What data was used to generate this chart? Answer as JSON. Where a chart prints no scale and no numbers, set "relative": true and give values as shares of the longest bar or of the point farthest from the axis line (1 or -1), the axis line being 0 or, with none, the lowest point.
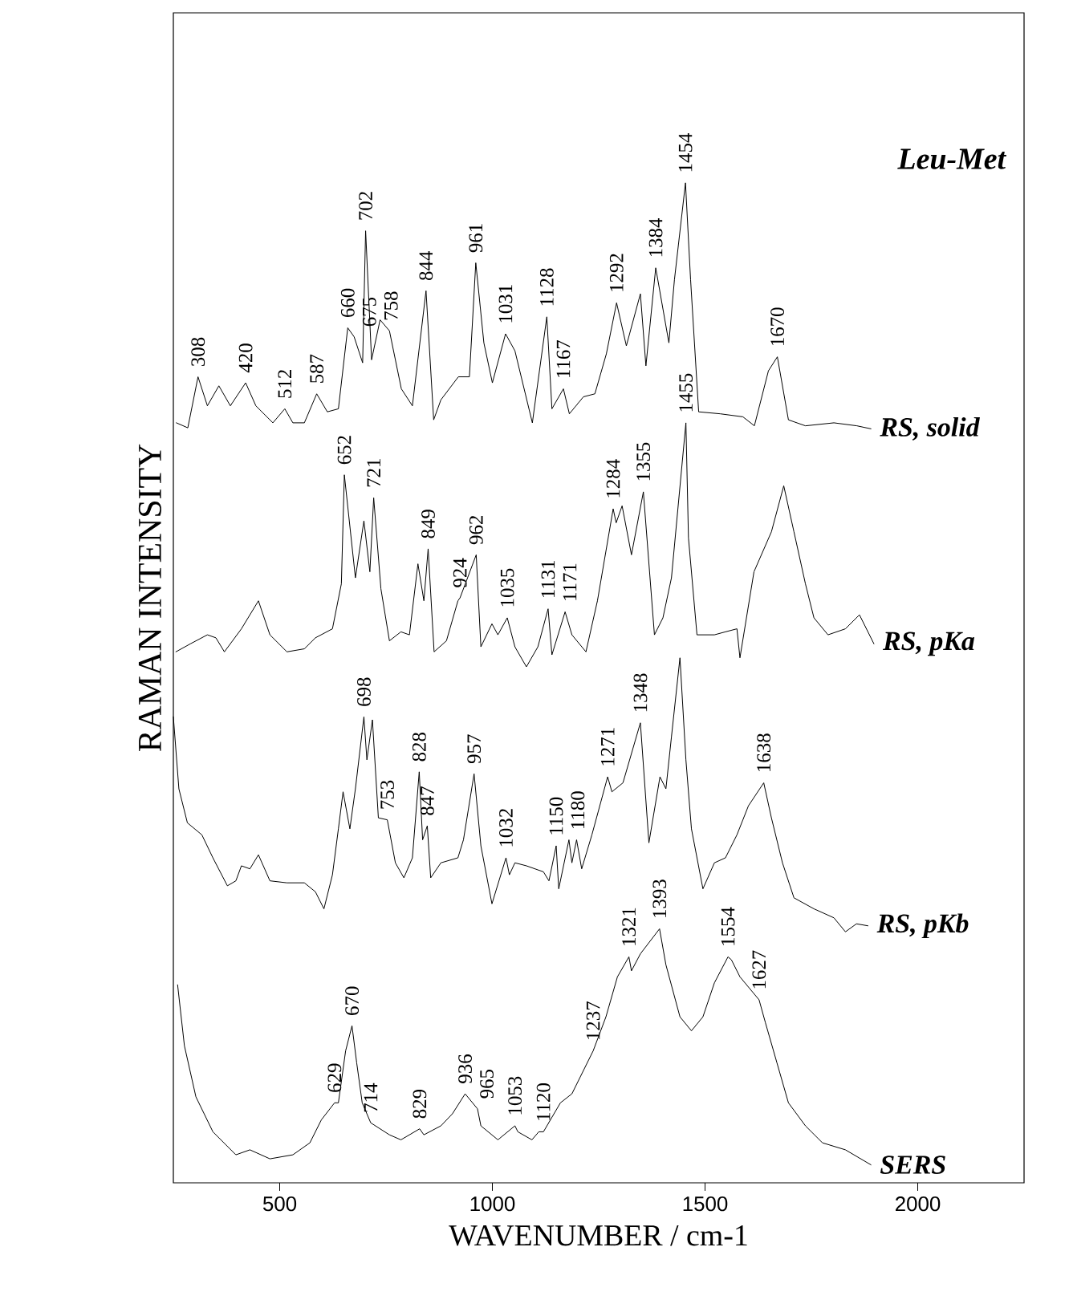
{
  "chart_data": {
    "type": "line",
    "title": "Leu-Met",
    "xlabel": "WAVENUMBER / cm-1",
    "ylabel": "RAMAN INTENSITY",
    "relative": true,
    "xlim": [
      250,
      2250
    ],
    "xticks": [
      500,
      1000,
      1500,
      2000
    ],
    "series": [
      {
        "name": "RS, solid",
        "color": "#000000",
        "x": [
          257,
          284,
          308,
          330,
          357,
          384,
          420,
          444,
          484,
          512,
          531,
          558,
          587,
          612,
          638,
          660,
          675,
          695,
          702,
          716,
          736,
          758,
          786,
          812,
          844,
          862,
          879,
          920,
          946,
          961,
          980,
          1000,
          1031,
          1053,
          1094,
          1128,
          1140,
          1167,
          1181,
          1214,
          1241,
          1268,
          1292,
          1315,
          1348,
          1361,
          1384,
          1415,
          1428,
          1454,
          1466,
          1485,
          1536,
          1589,
          1616,
          1649,
          1670,
          1696,
          1736,
          1803,
          1857,
          1890
        ],
        "values": [
          0.76,
          0.755,
          0.806,
          0.777,
          0.797,
          0.777,
          0.8,
          0.777,
          0.76,
          0.774,
          0.76,
          0.76,
          0.789,
          0.771,
          0.774,
          0.855,
          0.846,
          0.82,
          0.952,
          0.823,
          0.863,
          0.852,
          0.794,
          0.777,
          0.892,
          0.763,
          0.783,
          0.806,
          0.806,
          0.92,
          0.84,
          0.8,
          0.849,
          0.832,
          0.76,
          0.866,
          0.774,
          0.794,
          0.769,
          0.786,
          0.789,
          0.829,
          0.88,
          0.837,
          0.889,
          0.817,
          0.915,
          0.84,
          0.903,
          1.0,
          0.903,
          0.771,
          0.769,
          0.766,
          0.757,
          0.812,
          0.826,
          0.763,
          0.757,
          0.76,
          0.757,
          0.754
        ]
      },
      {
        "name": "RS, pKa",
        "color": "#000000",
        "x": [
          256,
          290,
          330,
          350,
          370,
          410,
          450,
          477,
          517,
          558,
          584,
          624,
          645,
          652,
          678,
          698,
          712,
          721,
          738,
          758,
          785,
          805,
          825,
          839,
          849,
          863,
          892,
          919,
          924,
          962,
          973,
          999,
          1013,
          1035,
          1053,
          1080,
          1107,
          1131,
          1140,
          1171,
          1187,
          1220,
          1247,
          1284,
          1291,
          1305,
          1327,
          1355,
          1381,
          1401,
          1421,
          1455,
          1461,
          1481,
          1522,
          1548,
          1575,
          1582,
          1615,
          1656,
          1685,
          1709,
          1736,
          1756,
          1789,
          1830,
          1863,
          1897
        ],
        "values": [
          0.531,
          0.539,
          0.548,
          0.545,
          0.531,
          0.554,
          0.582,
          0.548,
          0.531,
          0.534,
          0.545,
          0.554,
          0.599,
          0.708,
          0.605,
          0.662,
          0.611,
          0.685,
          0.594,
          0.542,
          0.551,
          0.548,
          0.619,
          0.582,
          0.634,
          0.531,
          0.542,
          0.582,
          0.585,
          0.628,
          0.536,
          0.559,
          0.548,
          0.565,
          0.536,
          0.516,
          0.536,
          0.574,
          0.528,
          0.571,
          0.548,
          0.531,
          0.582,
          0.674,
          0.66,
          0.677,
          0.628,
          0.691,
          0.548,
          0.565,
          0.605,
          0.76,
          0.645,
          0.548,
          0.548,
          0.551,
          0.554,
          0.525,
          0.611,
          0.651,
          0.697,
          0.651,
          0.599,
          0.565,
          0.548,
          0.554,
          0.568,
          0.539
        ]
      },
      {
        "name": "RS, pKb",
        "color": "#000000",
        "x": [
          250,
          263,
          283,
          317,
          343,
          377,
          397,
          410,
          430,
          450,
          477,
          517,
          558,
          584,
          604,
          624,
          638,
          649,
          665,
          678,
          698,
          705,
          718,
          732,
          753,
          772,
          792,
          812,
          828,
          836,
          847,
          855,
          879,
          919,
          932,
          957,
          973,
          999,
          1032,
          1040,
          1053,
          1080,
          1120,
          1133,
          1150,
          1156,
          1180,
          1187,
          1198,
          1210,
          1234,
          1271,
          1281,
          1307,
          1348,
          1368,
          1394,
          1408,
          1421,
          1441,
          1455,
          1468,
          1495,
          1522,
          1548,
          1575,
          1602,
          1638,
          1656,
          1682,
          1709,
          1756,
          1803,
          1830,
          1856,
          1883
        ],
        "values": [
          0.466,
          0.394,
          0.36,
          0.348,
          0.325,
          0.297,
          0.302,
          0.317,
          0.314,
          0.328,
          0.302,
          0.3,
          0.3,
          0.291,
          0.274,
          0.308,
          0.354,
          0.391,
          0.354,
          0.394,
          0.466,
          0.423,
          0.463,
          0.365,
          0.363,
          0.32,
          0.305,
          0.325,
          0.411,
          0.343,
          0.357,
          0.305,
          0.32,
          0.325,
          0.343,
          0.409,
          0.337,
          0.279,
          0.325,
          0.308,
          0.32,
          0.317,
          0.311,
          0.302,
          0.337,
          0.294,
          0.343,
          0.32,
          0.343,
          0.314,
          0.348,
          0.406,
          0.391,
          0.4,
          0.46,
          0.34,
          0.406,
          0.394,
          0.446,
          0.525,
          0.423,
          0.354,
          0.294,
          0.32,
          0.325,
          0.348,
          0.377,
          0.4,
          0.365,
          0.32,
          0.285,
          0.274,
          0.265,
          0.251,
          0.259,
          0.257
        ]
      },
      {
        "name": "SERS",
        "color": "#000000",
        "x": [
          260,
          276,
          303,
          343,
          397,
          430,
          477,
          531,
          571,
          598,
          629,
          638,
          655,
          670,
          681,
          694,
          714,
          758,
          785,
          829,
          839,
          879,
          906,
          936,
          965,
          973,
          1013,
          1053,
          1060,
          1093,
          1109,
          1120,
          1160,
          1187,
          1237,
          1267,
          1294,
          1321,
          1327,
          1348,
          1393,
          1408,
          1441,
          1468,
          1495,
          1522,
          1554,
          1562,
          1582,
          1627,
          1642,
          1669,
          1696,
          1736,
          1776,
          1830,
          1890
        ],
        "values": [
          0.198,
          0.137,
          0.086,
          0.051,
          0.028,
          0.033,
          0.024,
          0.028,
          0.04,
          0.063,
          0.08,
          0.08,
          0.132,
          0.157,
          0.12,
          0.08,
          0.06,
          0.048,
          0.043,
          0.054,
          0.048,
          0.057,
          0.069,
          0.089,
          0.074,
          0.057,
          0.043,
          0.057,
          0.051,
          0.043,
          0.051,
          0.051,
          0.08,
          0.089,
          0.132,
          0.166,
          0.206,
          0.226,
          0.212,
          0.229,
          0.254,
          0.218,
          0.166,
          0.152,
          0.166,
          0.2,
          0.226,
          0.223,
          0.206,
          0.183,
          0.16,
          0.12,
          0.08,
          0.057,
          0.04,
          0.033,
          0.018
        ]
      }
    ],
    "annotations": [
      {
        "text": "308",
        "x": 308,
        "y": 0.806
      },
      {
        "text": "420",
        "x": 420,
        "y": 0.8
      },
      {
        "text": "512",
        "x": 512,
        "y": 0.774
      },
      {
        "text": "587",
        "x": 587,
        "y": 0.789
      },
      {
        "text": "660",
        "x": 660,
        "y": 0.855
      },
      {
        "text": "675",
        "x": 675,
        "y": 0.846
      },
      {
        "text": "702",
        "x": 702,
        "y": 0.952
      },
      {
        "text": "758",
        "x": 758,
        "y": 0.852
      },
      {
        "text": "844",
        "x": 844,
        "y": 0.892
      },
      {
        "text": "961",
        "x": 961,
        "y": 0.92
      },
      {
        "text": "1031",
        "x": 1031,
        "y": 0.849
      },
      {
        "text": "1128",
        "x": 1128,
        "y": 0.866
      },
      {
        "text": "1167",
        "x": 1167,
        "y": 0.794
      },
      {
        "text": "1292",
        "x": 1292,
        "y": 0.88
      },
      {
        "text": "1384",
        "x": 1384,
        "y": 0.915
      },
      {
        "text": "1454",
        "x": 1454,
        "y": 1.0
      },
      {
        "text": "1670",
        "x": 1670,
        "y": 0.826
      },
      {
        "text": "1455",
        "x": 1455,
        "y": 0.76
      },
      {
        "text": "652",
        "x": 652,
        "y": 0.708
      },
      {
        "text": "721",
        "x": 721,
        "y": 0.685
      },
      {
        "text": "849",
        "x": 849,
        "y": 0.634
      },
      {
        "text": "924",
        "x": 924,
        "y": 0.585
      },
      {
        "text": "962",
        "x": 962,
        "y": 0.628
      },
      {
        "text": "1035",
        "x": 1035,
        "y": 0.565
      },
      {
        "text": "1131",
        "x": 1131,
        "y": 0.574
      },
      {
        "text": "1171",
        "x": 1171,
        "y": 0.571
      },
      {
        "text": "1284",
        "x": 1284,
        "y": 0.674
      },
      {
        "text": "1355",
        "x": 1355,
        "y": 0.691
      },
      {
        "text": "698",
        "x": 698,
        "y": 0.466
      },
      {
        "text": "753",
        "x": 753,
        "y": 0.363
      },
      {
        "text": "828",
        "x": 828,
        "y": 0.411
      },
      {
        "text": "847",
        "x": 847,
        "y": 0.357
      },
      {
        "text": "957",
        "x": 957,
        "y": 0.409
      },
      {
        "text": "1032",
        "x": 1032,
        "y": 0.325
      },
      {
        "text": "1150",
        "x": 1150,
        "y": 0.337
      },
      {
        "text": "1180",
        "x": 1180,
        "y": 0.343
      },
      {
        "text": "1271",
        "x": 1271,
        "y": 0.406
      },
      {
        "text": "1348",
        "x": 1348,
        "y": 0.46
      },
      {
        "text": "1638",
        "x": 1638,
        "y": 0.4
      },
      {
        "text": "1321",
        "x": 1321,
        "y": 0.226
      },
      {
        "text": "1393",
        "x": 1393,
        "y": 0.254
      },
      {
        "text": "1554",
        "x": 1554,
        "y": 0.226
      },
      {
        "text": "1627",
        "x": 1627,
        "y": 0.183
      },
      {
        "text": "629",
        "x": 629,
        "y": 0.08
      },
      {
        "text": "670",
        "x": 670,
        "y": 0.157
      },
      {
        "text": "714",
        "x": 714,
        "y": 0.06
      },
      {
        "text": "829",
        "x": 829,
        "y": 0.054
      },
      {
        "text": "936",
        "x": 936,
        "y": 0.089
      },
      {
        "text": "965",
        "x": 965,
        "y": 0.074
      },
      {
        "text": "1053",
        "x": 1053,
        "y": 0.057
      },
      {
        "text": "1120",
        "x": 1120,
        "y": 0.051
      },
      {
        "text": "1237",
        "x": 1237,
        "y": 0.132
      }
    ]
  }
}
